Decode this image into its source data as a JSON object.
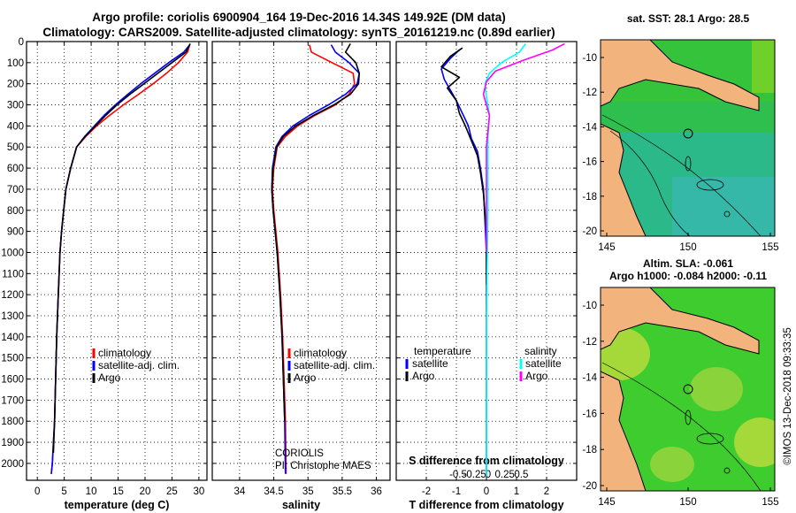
{
  "header": {
    "line1": "Argo profile: coriolis 6900904_164 19-Dec-2016 14.34S 149.92E (DM data)",
    "line2": "Climatology: CARS2009. Satellite-adjusted climatology: synTS_20161219.nc (0.89d earlier)"
  },
  "colors": {
    "climatology": "#ff0000",
    "satellite": "#0000ff",
    "argo": "#000000",
    "sat_s": "#00ffff",
    "clim_s": "#ff00ff"
  },
  "chart_data": [
    {
      "id": "temp",
      "type": "line",
      "xlabel": "temperature (deg C)",
      "ylabel": "",
      "xlim": [
        -2,
        31.5
      ],
      "ylim": [
        2080,
        0
      ],
      "xticks": [
        0,
        5,
        10,
        15,
        20,
        25,
        30
      ],
      "yticks": [
        0,
        100,
        200,
        300,
        400,
        500,
        600,
        700,
        800,
        900,
        1000,
        1100,
        1200,
        1300,
        1400,
        1500,
        1600,
        1700,
        1800,
        1900,
        2000
      ],
      "legend": [
        "climatology",
        "satellite-adj. clim.",
        "Argo"
      ],
      "series": [
        {
          "name": "climatology",
          "color": "#ff0000",
          "x": [
            28.3,
            27.9,
            26.2,
            24.0,
            21.5,
            18.8,
            16.0,
            13.4,
            11.0,
            9.0,
            7.3,
            6.2,
            5.3,
            4.9,
            4.5,
            4.2,
            3.9,
            3.6,
            3.4,
            3.2,
            3.0,
            2.8,
            2.6
          ],
          "y": [
            15,
            50,
            100,
            150,
            200,
            250,
            300,
            350,
            400,
            450,
            500,
            600,
            700,
            800,
            900,
            1000,
            1200,
            1400,
            1600,
            1800,
            1900,
            2000,
            2050
          ]
        },
        {
          "name": "satellite-adj. clim.",
          "color": "#0000ff",
          "x": [
            28.3,
            27.2,
            24.4,
            21.8,
            19.2,
            16.8,
            14.5,
            12.4,
            10.6,
            8.8,
            7.3,
            6.2,
            5.3,
            4.9,
            4.5,
            4.2,
            3.9,
            3.6,
            3.4,
            3.2,
            3.0,
            2.8,
            2.6
          ],
          "y": [
            15,
            50,
            100,
            150,
            200,
            250,
            300,
            350,
            400,
            450,
            500,
            600,
            700,
            800,
            900,
            1000,
            1200,
            1400,
            1600,
            1800,
            1900,
            2000,
            2050
          ]
        },
        {
          "name": "Argo",
          "color": "#000000",
          "x": [
            28.4,
            27.6,
            25.0,
            22.4,
            19.8,
            17.2,
            14.8,
            12.7,
            10.8,
            8.9,
            7.3,
            6.2,
            5.3,
            4.9,
            4.5,
            4.2,
            3.9,
            3.6,
            3.4,
            3.2,
            3.0
          ],
          "y": [
            10,
            50,
            100,
            150,
            200,
            250,
            300,
            350,
            400,
            450,
            500,
            600,
            700,
            800,
            900,
            1000,
            1200,
            1400,
            1600,
            1800,
            1950
          ]
        }
      ]
    },
    {
      "id": "sal",
      "type": "line",
      "xlabel": "salinity",
      "xlim": [
        33.6,
        36.2
      ],
      "ylim": [
        2080,
        0
      ],
      "xticks": [
        34,
        34.5,
        35,
        35.5,
        36
      ],
      "legend": [
        "climatology",
        "satellite-adj. clim.",
        "Argo"
      ],
      "notes": [
        "CORIOLIS",
        "PI: Christophe MAES"
      ],
      "series": [
        {
          "name": "climatology",
          "color": "#ff0000",
          "x": [
            35.02,
            35.05,
            35.35,
            35.66,
            35.68,
            35.6,
            35.4,
            35.1,
            34.85,
            34.67,
            34.55,
            34.5,
            34.48,
            34.5,
            34.53,
            34.56,
            34.6,
            34.63,
            34.65,
            34.67,
            34.68
          ],
          "y": [
            15,
            50,
            100,
            150,
            200,
            250,
            300,
            350,
            400,
            450,
            500,
            600,
            700,
            800,
            900,
            1000,
            1200,
            1400,
            1600,
            1800,
            2050
          ]
        },
        {
          "name": "satellite-adj. clim.",
          "color": "#0000ff",
          "x": [
            35.34,
            35.4,
            35.6,
            35.75,
            35.72,
            35.55,
            35.3,
            35.02,
            34.78,
            34.62,
            34.53,
            34.48,
            34.47,
            34.49,
            34.52,
            34.55,
            34.59,
            34.62,
            34.64,
            34.66,
            34.67
          ],
          "y": [
            15,
            50,
            100,
            150,
            200,
            250,
            300,
            350,
            400,
            450,
            500,
            600,
            700,
            800,
            900,
            1000,
            1200,
            1400,
            1600,
            1800,
            2050
          ]
        },
        {
          "name": "Argo",
          "color": "#000000",
          "x": [
            35.62,
            35.55,
            35.7,
            35.75,
            35.74,
            35.62,
            35.38,
            35.08,
            34.82,
            34.64,
            34.54,
            34.49,
            34.47,
            34.49,
            34.52,
            34.55,
            34.59,
            34.62,
            34.64,
            34.66
          ],
          "y": [
            10,
            50,
            100,
            150,
            200,
            250,
            300,
            350,
            400,
            450,
            500,
            600,
            700,
            800,
            900,
            1000,
            1200,
            1400,
            1600,
            1800
          ]
        }
      ]
    },
    {
      "id": "diff",
      "type": "line",
      "xlabel": "T difference from climatology",
      "xlim": [
        -3,
        3
      ],
      "ylim": [
        2080,
        0
      ],
      "xticks": [
        -2,
        -1,
        0,
        1,
        2
      ],
      "sticks": [
        "-0.5",
        "-0.25",
        "0",
        "0.25",
        "0.5"
      ],
      "slabel": "S difference from climatology",
      "legend_left_title": "temperature",
      "legend_right_title": "salinity",
      "legend_left": [
        "satellite",
        "Argo"
      ],
      "legend_right": [
        "satellite",
        "Argo"
      ],
      "series": [
        {
          "name": "T satellite",
          "color": "#0000ff",
          "x": [
            -0.9,
            -1.2,
            -1.5,
            -1.4,
            -1.2,
            -1.0,
            -0.8,
            -0.6,
            -0.5,
            -0.3,
            -0.2,
            -0.1,
            -0.05,
            0,
            0
          ],
          "y": [
            40,
            80,
            130,
            180,
            230,
            280,
            340,
            400,
            460,
            520,
            600,
            700,
            850,
            1000,
            2060
          ]
        },
        {
          "name": "T Argo",
          "color": "#000000",
          "x": [
            -0.8,
            -1.2,
            -1.5,
            -0.9,
            -1.3,
            -1.0,
            -0.9,
            -0.7,
            -0.5,
            -0.3,
            -0.2,
            -0.1,
            0,
            0
          ],
          "y": [
            30,
            70,
            120,
            170,
            220,
            280,
            340,
            400,
            470,
            540,
            620,
            720,
            900,
            1150
          ]
        },
        {
          "name": "S satellite",
          "color": "#00ffff",
          "x": [
            1.3,
            1.1,
            0.5,
            0.1,
            -0.05,
            0.0,
            0.1,
            0.05,
            0.05,
            0.05,
            0.02,
            0,
            0
          ],
          "y": [
            10,
            50,
            100,
            150,
            200,
            260,
            350,
            450,
            600,
            800,
            1100,
            1400,
            2060
          ]
        },
        {
          "name": "S Argo",
          "color": "#ff00ff",
          "x": [
            2.6,
            2.2,
            1.2,
            0.3,
            0,
            -0.1,
            0.1,
            0.0,
            0.0,
            0.0
          ],
          "y": [
            10,
            40,
            90,
            140,
            190,
            250,
            350,
            500,
            700,
            1000
          ]
        }
      ]
    }
  ],
  "maps": {
    "top": {
      "title": "sat. SST: 28.1 Argo: 28.5",
      "yticks": [
        "-10",
        "-12",
        "-14",
        "-16",
        "-18",
        "-20"
      ],
      "xticks": [
        "145",
        "150",
        "155"
      ]
    },
    "bottom": {
      "title1": "Altim. SLA: -0.061",
      "title2": "Argo h1000: -0.084 h2000: -0.11",
      "yticks": [
        "-10",
        "-12",
        "-14",
        "-16",
        "-18",
        "-20"
      ],
      "xticks": [
        "145",
        "150",
        "155"
      ]
    },
    "credit": "©IMOS 13-Dec-2018 09:33:35"
  }
}
